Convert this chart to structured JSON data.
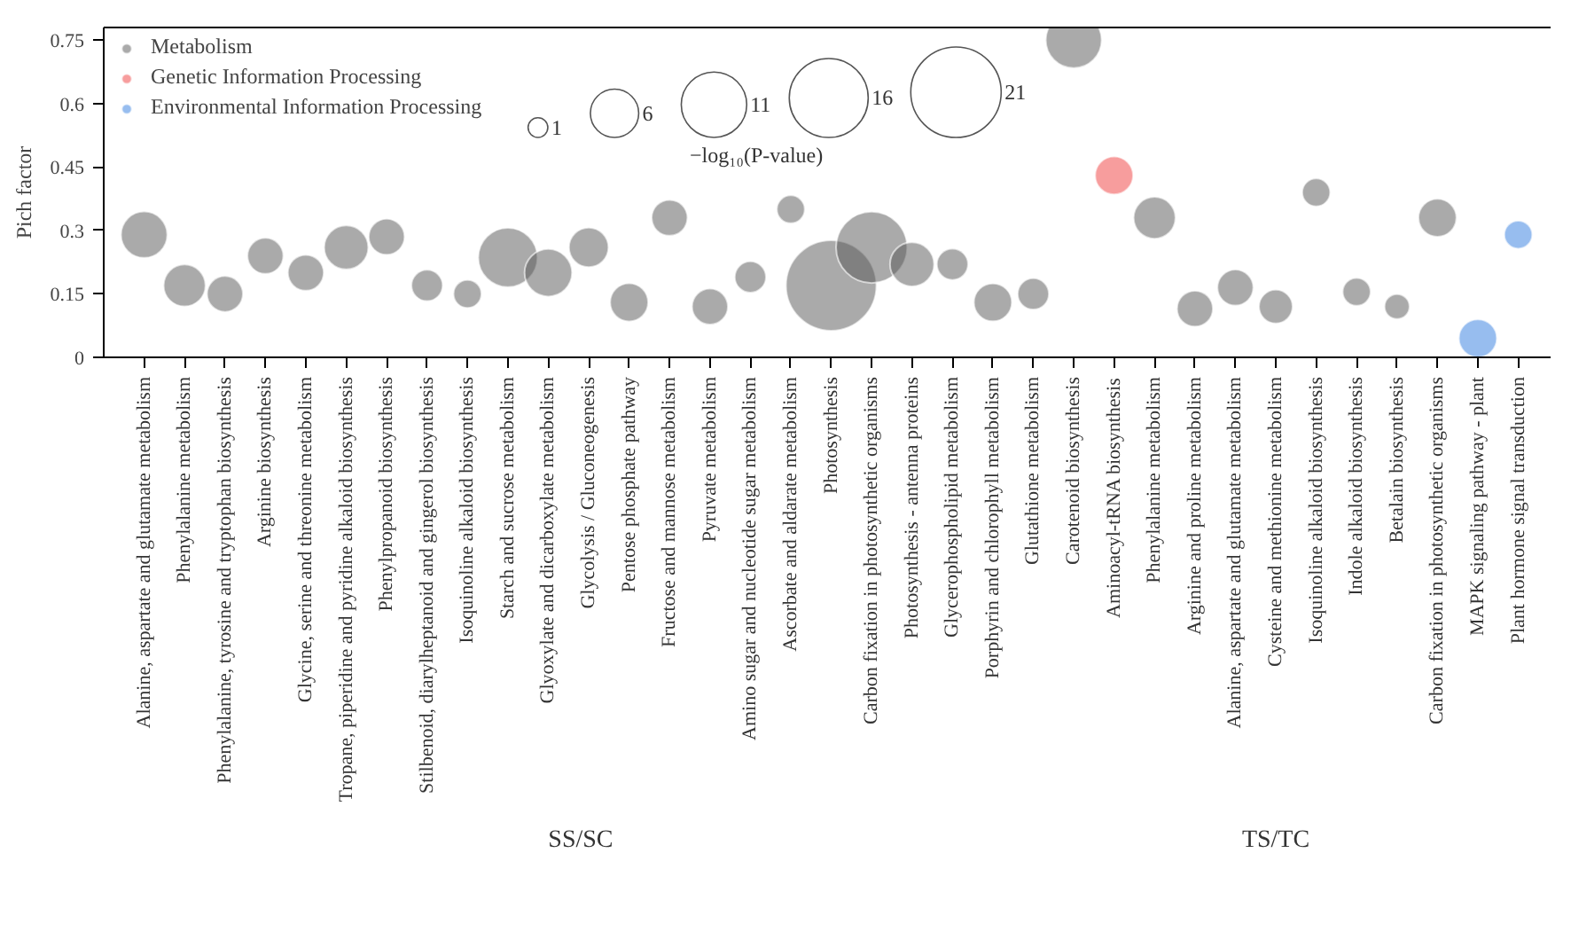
{
  "chart_data": {
    "type": "bubble",
    "ylabel": "Pich factor",
    "legend": "top left",
    "grid": false,
    "legend_title": "−log₁₀(P-value)",
    "size_legend": [
      1,
      6,
      11,
      16,
      21
    ],
    "ylim": [
      0,
      0.78
    ],
    "yticks": [
      0,
      0.15,
      0.3,
      0.45,
      0.6,
      0.75
    ],
    "annotations": [
      "SS/SC",
      "TS/TC"
    ],
    "categories": [
      "Alanine, aspartate and glutamate metabolism",
      "Phenylalanine metabolism",
      "Phenylalanine, tyrosine and tryptophan biosynthesis",
      "Arginine biosynthesis",
      "Glycine, serine and threonine metabolism",
      "Tropane, piperidine and pyridine alkaloid biosynthesis",
      "Phenylpropanoid biosynthesis",
      "Stilbenoid, diarylheptanoid and gingerol biosynthesis",
      "Isoquinoline alkaloid biosynthesis",
      "Starch and sucrose metabolism",
      "Glyoxylate and dicarboxylate metabolism",
      "Glycolysis / Gluconeogenesis",
      "Pentose phosphate pathway",
      "Fructose and mannose metabolism",
      "Pyruvate metabolism",
      "Amino sugar and nucleotide sugar metabolism",
      "Ascorbate and aldarate metabolism",
      "Photosynthesis",
      "Carbon fixation in photosynthetic organisms",
      "Photosynthesis - antenna proteins",
      "Glycerophospholipid metabolism",
      "Porphyrin and chlorophyll metabolism",
      "Glutathione metabolism",
      "Carotenoid biosynthesis",
      "Aminoacyl-tRNA biosynthesis",
      "Phenylalanine metabolism",
      "Arginine and proline metabolism",
      "Alanine, aspartate and glutamate metabolism",
      "Cysteine and methionine metabolism",
      "Isoquinoline alkaloid biosynthesis",
      "Indole alkaloid biosynthesis",
      "Betalain biosynthesis",
      "Carbon fixation in photosynthetic organisms",
      "MAPK signaling pathway - plant",
      "Plant hormone signal transduction"
    ],
    "series": [
      {
        "name": "Metabolism",
        "color": "#555555",
        "values": [
          0.29,
          0.17,
          0.15,
          0.24,
          0.2,
          0.26,
          0.285,
          0.17,
          0.15,
          0.236,
          0.2,
          0.26,
          0.13,
          0.33,
          0.12,
          0.19,
          0.35,
          0.17,
          0.26,
          0.22,
          0.22,
          0.13,
          0.15,
          0.75,
          null,
          0.33,
          0.115,
          0.165,
          0.12,
          0.39,
          0.155,
          0.12,
          0.33,
          null,
          null
        ],
        "sizes": [
          5.5,
          4.5,
          3.3,
          3.3,
          3.3,
          5,
          3.3,
          2.5,
          2,
          9,
          5.8,
          4,
          3.7,
          3.3,
          3.3,
          2.5,
          2,
          21,
          13,
          5,
          2.5,
          3.7,
          2.5,
          8,
          null,
          4.5,
          3.3,
          3.3,
          2.9,
          2,
          2,
          1.6,
          3.7,
          null,
          null
        ]
      },
      {
        "name": "Genetic Information Processing",
        "color": "#f03c3c",
        "values": [
          null,
          null,
          null,
          null,
          null,
          null,
          null,
          null,
          null,
          null,
          null,
          null,
          null,
          null,
          null,
          null,
          null,
          null,
          null,
          null,
          null,
          null,
          null,
          null,
          0.43,
          null,
          null,
          null,
          null,
          null,
          null,
          null,
          null,
          null,
          null
        ],
        "sizes": [
          null,
          null,
          null,
          null,
          null,
          null,
          null,
          null,
          null,
          null,
          null,
          null,
          null,
          null,
          null,
          null,
          null,
          null,
          null,
          null,
          null,
          null,
          null,
          null,
          3.7,
          null,
          null,
          null,
          null,
          null,
          null,
          null,
          null,
          null,
          null
        ]
      },
      {
        "name": "Environmental Information Processing",
        "color": "#2f7be0",
        "values": [
          null,
          null,
          null,
          null,
          null,
          null,
          null,
          null,
          null,
          null,
          null,
          null,
          null,
          null,
          null,
          null,
          null,
          null,
          null,
          null,
          null,
          null,
          null,
          null,
          null,
          null,
          null,
          null,
          null,
          null,
          null,
          null,
          null,
          0.045,
          0.29
        ],
        "sizes": [
          null,
          null,
          null,
          null,
          null,
          null,
          null,
          null,
          null,
          null,
          null,
          null,
          null,
          null,
          null,
          null,
          null,
          null,
          null,
          null,
          null,
          null,
          null,
          null,
          null,
          null,
          null,
          null,
          null,
          null,
          null,
          null,
          null,
          3.7,
          2
        ]
      }
    ]
  }
}
